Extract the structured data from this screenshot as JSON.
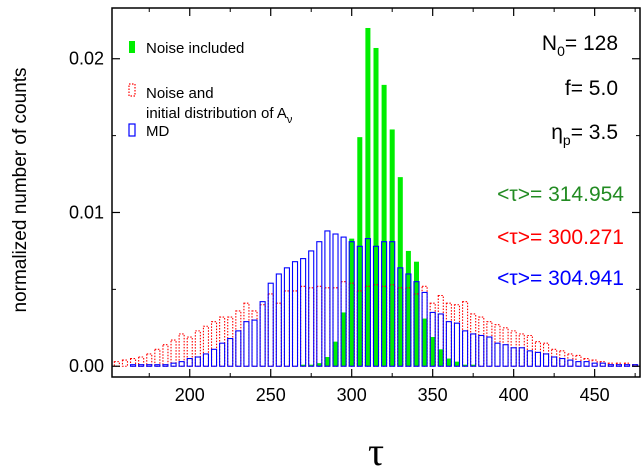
{
  "chart_data": {
    "type": "bar",
    "title": "",
    "xlabel": "τ",
    "ylabel": "normalized number of counts",
    "xlim": [
      152,
      478
    ],
    "ylim": [
      -0.0007,
      0.0233
    ],
    "x_ticks": [
      200,
      250,
      300,
      350,
      400,
      450
    ],
    "x_tick_labels": [
      "200",
      "250",
      "300",
      "350",
      "400",
      "450"
    ],
    "y_ticks": [
      0.0,
      0.01,
      0.02
    ],
    "y_tick_labels": [
      "0.00",
      "0.01",
      "0.02"
    ],
    "grid": false,
    "legend_position": "top-left",
    "legend": [
      {
        "name": "Noise included",
        "color": "#00ee00",
        "style": "filled"
      },
      {
        "name_lines": [
          "Noise and",
          "initial distribution of A"
        ],
        "subscript": "ν",
        "color": "#ff0000",
        "style": "dotted-outline"
      },
      {
        "name": "MD",
        "color": "#0000ff",
        "style": "outline"
      }
    ],
    "parameters": [
      {
        "symbol": "N",
        "sub": "0",
        "value": "= 128"
      },
      {
        "symbol": "f",
        "sub": "",
        "value": "= 5.0"
      },
      {
        "symbol": "η",
        "sub": "p",
        "value": "= 3.5"
      }
    ],
    "means": [
      {
        "text": "<τ>= 314.954",
        "color": "#228b22"
      },
      {
        "text": "<τ>= 300.271",
        "color": "#ff0000"
      },
      {
        "text": "<τ>= 304.941",
        "color": "#0000ff"
      }
    ],
    "bin_width": 5,
    "series": [
      {
        "name": "Noise included",
        "color": "#00ee00",
        "x": [
          270,
          275,
          280,
          285,
          290,
          295,
          300,
          305,
          310,
          315,
          320,
          325,
          330,
          335,
          340,
          345,
          350,
          355,
          360,
          365,
          370,
          375
        ],
        "values": [
          0.0001,
          0.0001,
          0.0002,
          0.0006,
          0.0016,
          0.0035,
          0.0083,
          0.0149,
          0.022,
          0.0207,
          0.0183,
          0.0154,
          0.0123,
          0.0075,
          0.0068,
          0.0031,
          0.0019,
          0.0011,
          0.0005,
          0.0003,
          0.0001,
          0.0001
        ]
      },
      {
        "name": "Noise and initial distribution of Aν",
        "color": "#ff0000",
        "x": [
          155,
          160,
          165,
          170,
          175,
          180,
          185,
          190,
          195,
          200,
          205,
          210,
          215,
          220,
          225,
          230,
          235,
          240,
          245,
          250,
          255,
          260,
          265,
          270,
          275,
          280,
          285,
          290,
          295,
          300,
          305,
          310,
          315,
          320,
          325,
          330,
          335,
          340,
          345,
          350,
          355,
          360,
          365,
          370,
          375,
          380,
          385,
          390,
          395,
          400,
          405,
          410,
          415,
          420,
          425,
          430,
          435,
          440,
          445,
          450,
          455,
          460,
          465,
          470,
          475
        ],
        "values": [
          0.0003,
          0.0004,
          0.0005,
          0.0006,
          0.0008,
          0.0011,
          0.0014,
          0.0017,
          0.0021,
          0.0019,
          0.0023,
          0.0026,
          0.0029,
          0.0032,
          0.0032,
          0.0036,
          0.0041,
          0.0036,
          0.004,
          0.0047,
          0.0041,
          0.0049,
          0.0049,
          0.0052,
          0.0051,
          0.0052,
          0.0051,
          0.0051,
          0.0055,
          0.0054,
          0.0049,
          0.0052,
          0.0053,
          0.0052,
          0.0053,
          0.0051,
          0.0051,
          0.0047,
          0.0052,
          0.0041,
          0.0046,
          0.0041,
          0.004,
          0.0042,
          0.0034,
          0.0032,
          0.0029,
          0.0027,
          0.0025,
          0.0023,
          0.0021,
          0.002,
          0.0016,
          0.0015,
          0.0011,
          0.001,
          0.0008,
          0.0007,
          0.0005,
          0.0004,
          0.0003,
          0.0002,
          0.0002,
          0.0002,
          0.0001
        ]
      },
      {
        "name": "MD",
        "color": "#0000ff",
        "x": [
          165,
          170,
          175,
          180,
          185,
          190,
          195,
          200,
          205,
          210,
          215,
          220,
          225,
          230,
          235,
          240,
          245,
          250,
          255,
          260,
          265,
          270,
          275,
          280,
          285,
          290,
          295,
          300,
          305,
          310,
          315,
          320,
          325,
          330,
          335,
          340,
          345,
          350,
          355,
          360,
          365,
          370,
          375,
          380,
          385,
          390,
          395,
          400,
          405,
          410,
          415,
          420,
          425,
          430,
          435,
          440,
          445,
          450,
          455,
          460,
          465,
          470,
          475
        ],
        "values": [
          0.0001,
          0.0001,
          0.0001,
          0.0001,
          0.0001,
          0.0002,
          0.0003,
          0.0005,
          0.0006,
          0.0008,
          0.0011,
          0.0015,
          0.0018,
          0.0023,
          0.0029,
          0.003,
          0.0042,
          0.0054,
          0.006,
          0.0064,
          0.0068,
          0.007,
          0.0075,
          0.0081,
          0.0088,
          0.0086,
          0.0084,
          0.0081,
          0.0078,
          0.0083,
          0.0078,
          0.0081,
          0.0081,
          0.0064,
          0.006,
          0.0055,
          0.0048,
          0.0035,
          0.0034,
          0.0029,
          0.0028,
          0.0023,
          0.0021,
          0.002,
          0.0019,
          0.0015,
          0.0014,
          0.0012,
          0.0012,
          0.001,
          0.0009,
          0.0008,
          0.0006,
          0.0005,
          0.0004,
          0.0003,
          0.0003,
          0.0002,
          0.0002,
          0.0001,
          0.0001,
          0.0001,
          0.0001
        ]
      }
    ]
  }
}
